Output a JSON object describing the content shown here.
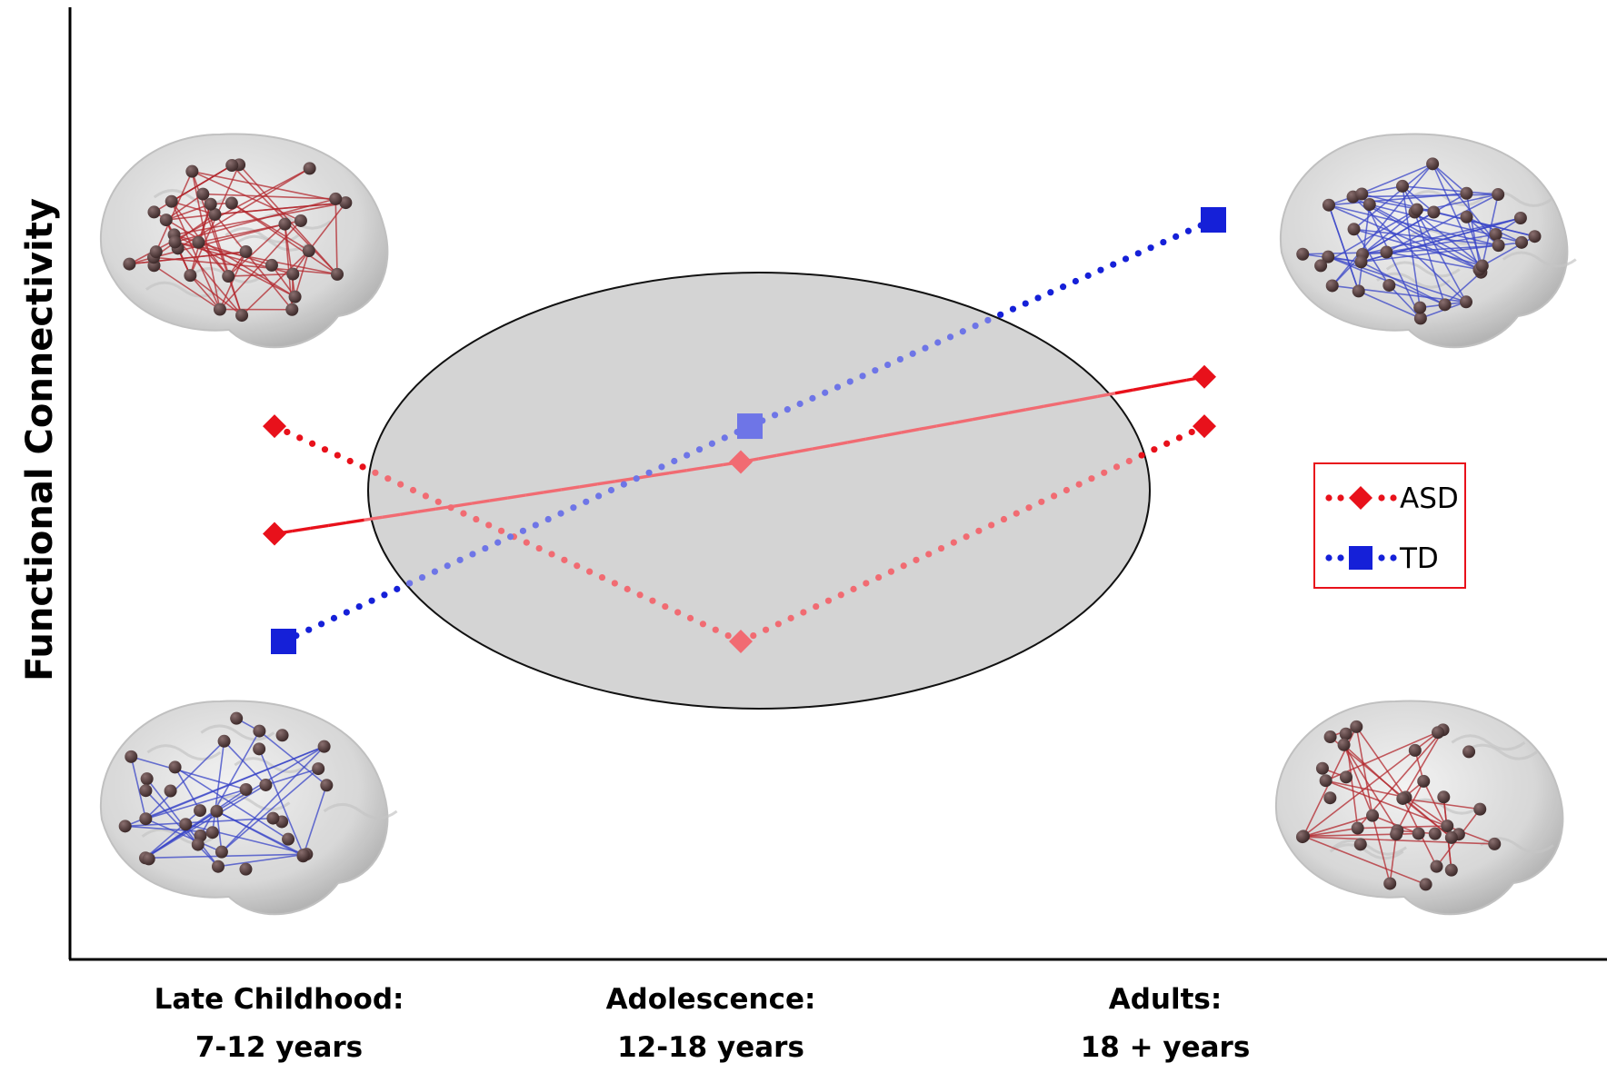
{
  "chart_data": {
    "type": "line",
    "title": "",
    "xlabel": "",
    "ylabel": "Functional Connectivity",
    "categories": [
      {
        "line1": "Late Childhood:",
        "line2": "7-12 years"
      },
      {
        "line1": "Adolescence:",
        "line2": "12-18 years"
      },
      {
        "line1": "Adults:",
        "line2": "18 +  years"
      }
    ],
    "ylim": [
      0,
      10
    ],
    "grid": false,
    "legend": {
      "placement": "right",
      "entries": [
        {
          "name": "ASD",
          "color": "#e8111b",
          "marker": "diamond",
          "style": "dotted"
        },
        {
          "name": "TD",
          "color": "#1520d8",
          "marker": "square",
          "style": "dotted"
        }
      ]
    },
    "series": [
      {
        "name": "ASD",
        "key": "asd_dotted",
        "style": "dotted",
        "marker": "diamond",
        "color": "#e8111b",
        "values": [
          5.8,
          3.4,
          5.8
        ]
      },
      {
        "key": "asd_solid",
        "style": "solid",
        "marker": "diamond",
        "color": "#e8111b",
        "values": [
          4.6,
          5.4,
          6.35
        ]
      },
      {
        "name": "TD",
        "key": "td_dotted",
        "style": "dotted",
        "marker": "square",
        "color": "#1520d8",
        "values": [
          3.4,
          5.8,
          8.1
        ]
      }
    ],
    "annotations": {
      "highlight_region": {
        "category": "Adolescence:",
        "fill": "#d4d4d4"
      },
      "brain_networks": [
        {
          "category": "Late Childhood:",
          "level": "high",
          "color": "#b3282e"
        },
        {
          "category": "Late Childhood:",
          "level": "low",
          "color": "#3a46c8"
        },
        {
          "category": "Adults:",
          "level": "high",
          "color": "#3a46c8"
        },
        {
          "category": "Adults:",
          "level": "low",
          "color": "#b3282e"
        }
      ]
    }
  }
}
